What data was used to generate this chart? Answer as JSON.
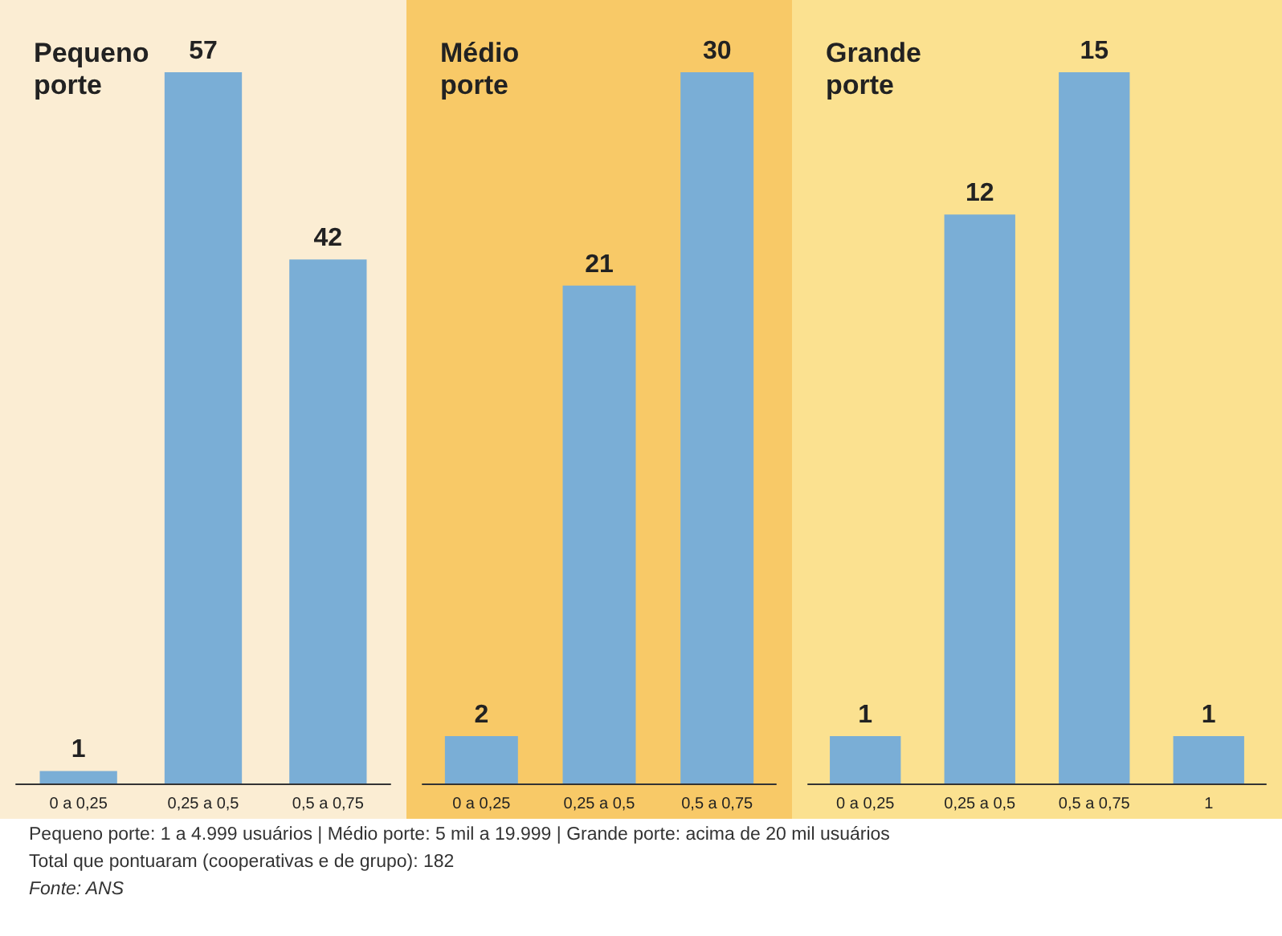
{
  "chart_data": [
    {
      "type": "bar",
      "title": "Pequeno porte",
      "categories": [
        "0 a 0,25",
        "0,25 a 0,5",
        "0,5 a 0,75"
      ],
      "series": [
        {
          "color": "#7aaed6",
          "values": [
            1,
            57,
            42
          ]
        }
      ],
      "data_labels": true,
      "tick_labels": "x",
      "annotations": [
        "Pequeno porte: 1 a 4.999 usuários | Médio porte: 5 mil a 19.999 | Grande porte: acima de 20 mil usuários",
        "Total que pontuaram (cooperativas e de grupo): 182",
        "Fonte: ANS"
      ]
    },
    {
      "type": "bar",
      "title": "Médio porte",
      "categories": [
        "0 a 0,25",
        "0,25 a 0,5",
        "0,5 a 0,75"
      ],
      "series": [
        {
          "color": "#7aaed6",
          "values": [
            2,
            21,
            30
          ]
        }
      ],
      "data_labels": true,
      "tick_labels": "x"
    },
    {
      "type": "bar",
      "title": "Grande porte",
      "categories": [
        "0 a 0,25",
        "0,25 a 0,5",
        "0,5 a 0,75",
        "1"
      ],
      "series": [
        {
          "color": "#7aaed6",
          "values": [
            1,
            12,
            15,
            1
          ]
        }
      ],
      "data_labels": true,
      "tick_labels": "x"
    }
  ]
}
